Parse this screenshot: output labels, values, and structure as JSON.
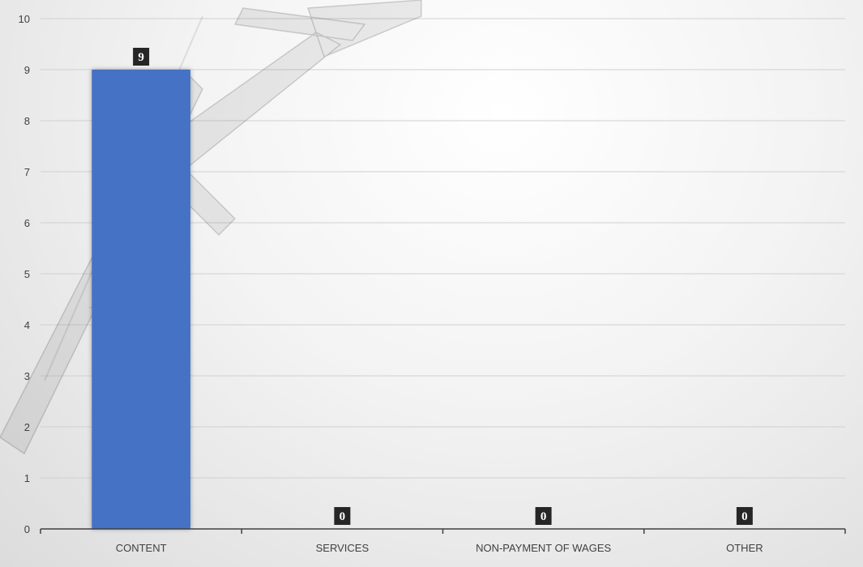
{
  "chart_data": {
    "type": "bar",
    "categories": [
      "CONTENT",
      "SERVICES",
      "NON-PAYMENT OF WAGES",
      "OTHER"
    ],
    "values": [
      9,
      0,
      0,
      0
    ],
    "data_labels": [
      "9",
      "0",
      "0",
      "0"
    ],
    "title": "",
    "xlabel": "",
    "ylabel": "",
    "ylim": [
      0,
      10
    ],
    "yticks": [
      "0",
      "1",
      "2",
      "3",
      "4",
      "5",
      "6",
      "7",
      "8",
      "9",
      "10"
    ],
    "grid": true,
    "legend": "none",
    "colors": {
      "bar": "#4472C4",
      "gridline": "#d0d0d0",
      "axis": "#404040",
      "label_box": "#262626",
      "watermark": "#1f1f1f"
    }
  }
}
